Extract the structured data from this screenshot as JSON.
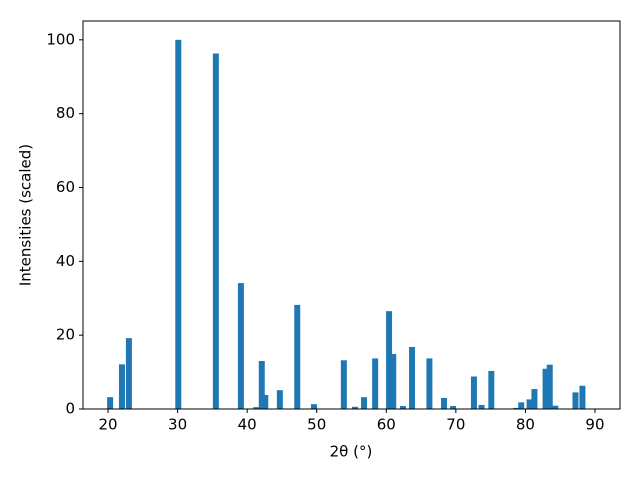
{
  "chart_data": {
    "type": "bar",
    "x_label": "2θ (°)",
    "y_label": "Intensities (scaled)",
    "x": [
      20.3,
      22.0,
      23.0,
      30.1,
      35.5,
      39.1,
      41.3,
      42.1,
      42.6,
      44.7,
      47.2,
      49.6,
      53.9,
      55.5,
      56.8,
      58.4,
      60.4,
      61.0,
      62.4,
      63.7,
      66.2,
      68.3,
      69.6,
      72.6,
      73.7,
      75.1,
      78.7,
      79.4,
      80.6,
      81.3,
      82.9,
      83.5,
      84.3,
      87.2,
      88.2
    ],
    "values": [
      3.2,
      12.1,
      19.2,
      100,
      96.3,
      34.1,
      0.5,
      13.0,
      3.8,
      5.1,
      28.2,
      1.3,
      13.2,
      0.6,
      3.2,
      13.7,
      26.5,
      14.9,
      0.8,
      16.8,
      13.7,
      3.0,
      0.8,
      8.8,
      1.1,
      10.3,
      0.3,
      1.8,
      2.6,
      5.4,
      10.9,
      12.0,
      0.9,
      4.5,
      6.3
    ],
    "color": "#1f77b4",
    "xlim": [
      16.4,
      93.6
    ],
    "ylim": [
      0,
      105.1
    ],
    "xticks": [
      20,
      30,
      40,
      50,
      60,
      70,
      80,
      90
    ],
    "yticks": [
      0,
      20,
      40,
      60,
      80,
      100
    ]
  }
}
